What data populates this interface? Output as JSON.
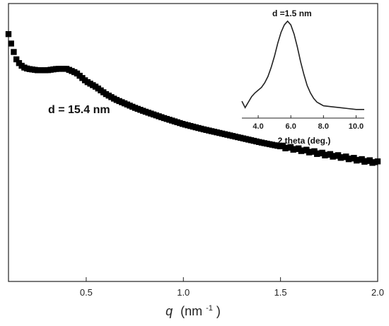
{
  "chart_data": [
    {
      "type": "scatter",
      "xlabel_symbol": "q",
      "xlabel_unit": "(nm",
      "xlabel_unit_exp": "-1",
      "xlabel_unit_close": ")",
      "ylabel": "",
      "xlim": [
        0.1,
        2.0
      ],
      "ylim": [
        0,
        1
      ],
      "xticks": [
        0.5,
        1.0,
        1.5,
        2.0
      ],
      "xtick_labels": [
        "0.5",
        "1.0",
        "1.5",
        "2.0"
      ],
      "annotation": {
        "text": "d = 15.4 nm",
        "x": 0.2,
        "y": 0.75
      },
      "series": [
        {
          "x": [
            0.1,
            0.12,
            0.14,
            0.16,
            0.18,
            0.2,
            0.25,
            0.3,
            0.35,
            0.4,
            0.45,
            0.5,
            0.55,
            0.6,
            0.65,
            0.7,
            0.75,
            0.8,
            0.85,
            0.9,
            0.95,
            1.0,
            1.05,
            1.1,
            1.15,
            1.2,
            1.25,
            1.3,
            1.35,
            1.4,
            1.45,
            1.5,
            1.55,
            1.6,
            1.65,
            1.7,
            1.75,
            1.8,
            1.85,
            1.9,
            1.95,
            2.0
          ],
          "y": [
            0.89,
            0.84,
            0.8,
            0.78,
            0.77,
            0.765,
            0.76,
            0.76,
            0.765,
            0.765,
            0.75,
            0.72,
            0.7,
            0.675,
            0.655,
            0.64,
            0.625,
            0.612,
            0.6,
            0.588,
            0.577,
            0.566,
            0.557,
            0.548,
            0.54,
            0.532,
            0.524,
            0.516,
            0.508,
            0.5,
            0.493,
            0.486,
            0.48,
            0.474,
            0.468,
            0.461,
            0.455,
            0.45,
            0.444,
            0.438,
            0.433,
            0.428
          ]
        }
      ]
    },
    {
      "type": "line",
      "xlabel": "2 theta (deg.)",
      "xlim": [
        3.0,
        10.5
      ],
      "ylim": [
        0,
        1
      ],
      "xticks": [
        4.0,
        6.0,
        8.0,
        10.0
      ],
      "xtick_labels": [
        "4.0",
        "6.0",
        "8.0",
        "10.0"
      ],
      "annotation": {
        "text": "d =1.5 nm"
      },
      "series": [
        {
          "x": [
            3.0,
            3.2,
            3.4,
            3.6,
            3.8,
            4.0,
            4.2,
            4.4,
            4.6,
            4.8,
            5.0,
            5.2,
            5.4,
            5.6,
            5.8,
            6.0,
            6.2,
            6.4,
            6.6,
            6.8,
            7.0,
            7.2,
            7.4,
            7.6,
            7.8,
            8.0,
            8.5,
            9.0,
            9.5,
            10.0,
            10.5
          ],
          "y": [
            0.13,
            0.06,
            0.12,
            0.18,
            0.22,
            0.25,
            0.28,
            0.33,
            0.4,
            0.5,
            0.62,
            0.76,
            0.88,
            0.96,
            1.0,
            0.96,
            0.86,
            0.72,
            0.56,
            0.42,
            0.3,
            0.22,
            0.16,
            0.12,
            0.1,
            0.08,
            0.07,
            0.06,
            0.05,
            0.04,
            0.04
          ]
        }
      ]
    }
  ]
}
